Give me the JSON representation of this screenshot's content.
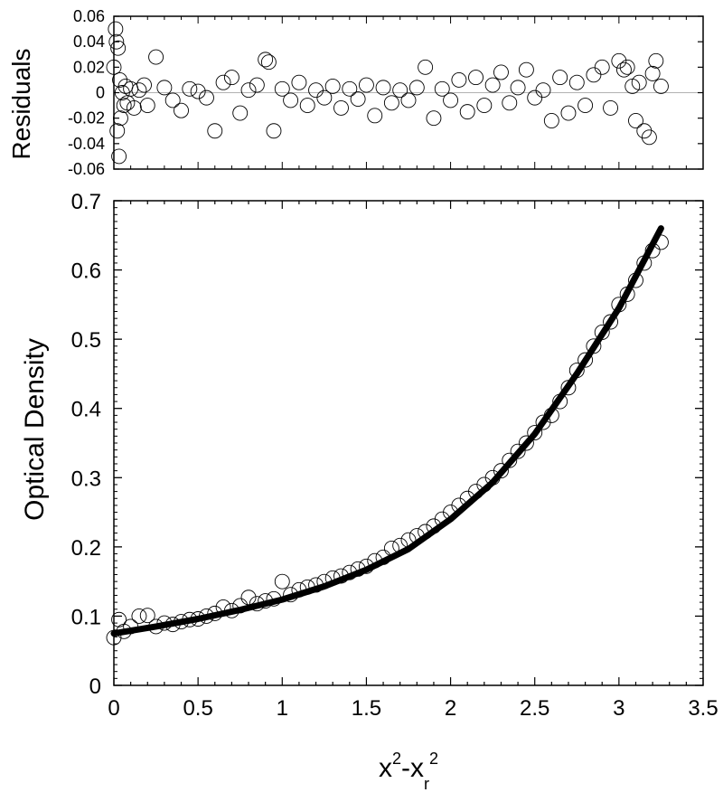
{
  "chart_data": [
    {
      "id": "residuals",
      "type": "scatter",
      "xlim": [
        0,
        3.5
      ],
      "ylim": [
        -0.06,
        0.06
      ],
      "ylabel": "Residuals",
      "yticks": [
        "0.06",
        "0.04",
        "0.02",
        "0",
        "-0.02",
        "-0.04",
        "-0.06"
      ],
      "ytick_values": [
        0.06,
        0.04,
        0.02,
        0,
        -0.02,
        -0.04,
        -0.06
      ],
      "zero_line": true,
      "grid": false,
      "series": [
        {
          "marker": "open-circle",
          "x": [
            0.0,
            0.01,
            0.015,
            0.02,
            0.025,
            0.03,
            0.035,
            0.04,
            0.05,
            0.06,
            0.07,
            0.08,
            0.1,
            0.12,
            0.15,
            0.18,
            0.2,
            0.25,
            0.3,
            0.35,
            0.4,
            0.45,
            0.5,
            0.55,
            0.6,
            0.65,
            0.7,
            0.75,
            0.8,
            0.85,
            0.9,
            0.92,
            0.95,
            1.0,
            1.05,
            1.1,
            1.15,
            1.2,
            1.25,
            1.3,
            1.35,
            1.4,
            1.45,
            1.5,
            1.55,
            1.6,
            1.65,
            1.7,
            1.75,
            1.8,
            1.85,
            1.9,
            1.95,
            2.0,
            2.05,
            2.1,
            2.15,
            2.2,
            2.25,
            2.3,
            2.35,
            2.4,
            2.45,
            2.5,
            2.55,
            2.6,
            2.65,
            2.7,
            2.75,
            2.8,
            2.85,
            2.9,
            2.95,
            3.0,
            3.03,
            3.05,
            3.08,
            3.1,
            3.12,
            3.15,
            3.18,
            3.2,
            3.22,
            3.25
          ],
          "y": [
            0.02,
            0.05,
            0.04,
            -0.03,
            0.035,
            -0.05,
            0.01,
            -0.02,
            0.0,
            -0.01,
            0.005,
            -0.008,
            0.003,
            -0.012,
            0.002,
            0.006,
            -0.01,
            0.028,
            0.004,
            -0.006,
            -0.014,
            0.003,
            0.001,
            -0.004,
            -0.03,
            0.008,
            0.012,
            -0.016,
            0.002,
            0.006,
            0.026,
            0.024,
            -0.03,
            0.003,
            -0.006,
            0.008,
            -0.01,
            0.002,
            -0.004,
            0.005,
            -0.012,
            0.003,
            -0.005,
            0.006,
            -0.018,
            0.004,
            -0.008,
            0.002,
            -0.006,
            0.004,
            0.02,
            -0.02,
            0.003,
            -0.006,
            0.01,
            -0.015,
            0.012,
            -0.01,
            0.006,
            0.016,
            -0.008,
            0.004,
            0.018,
            -0.004,
            0.002,
            -0.022,
            0.012,
            -0.016,
            0.008,
            -0.01,
            0.014,
            0.02,
            -0.012,
            0.025,
            0.018,
            0.02,
            0.005,
            -0.022,
            0.008,
            -0.03,
            -0.035,
            0.015,
            0.025,
            0.005
          ]
        }
      ]
    },
    {
      "id": "optical-density",
      "type": "scatter",
      "xlim": [
        0,
        3.5
      ],
      "ylim": [
        0,
        0.7
      ],
      "xlabel": "x²-xᵣ²",
      "xlabel_base1": "x",
      "xlabel_sup1": "2",
      "xlabel_mid": "-x",
      "xlabel_sub": "r",
      "xlabel_sup2": "2",
      "ylabel": "Optical Density",
      "xticks": [
        "0",
        "0.5",
        "1",
        "1.5",
        "2",
        "2.5",
        "3",
        "3.5"
      ],
      "xtick_values": [
        0,
        0.5,
        1,
        1.5,
        2,
        2.5,
        3,
        3.5
      ],
      "yticks": [
        "0",
        "0.1",
        "0.2",
        "0.3",
        "0.4",
        "0.5",
        "0.6",
        "0.7"
      ],
      "ytick_values": [
        0,
        0.1,
        0.2,
        0.3,
        0.4,
        0.5,
        0.6,
        0.7
      ],
      "grid": false,
      "series": [
        {
          "marker": "open-circle",
          "x": [
            0.0,
            0.03,
            0.06,
            0.1,
            0.15,
            0.2,
            0.25,
            0.3,
            0.35,
            0.4,
            0.45,
            0.5,
            0.55,
            0.6,
            0.65,
            0.7,
            0.75,
            0.8,
            0.85,
            0.9,
            0.95,
            1.0,
            1.05,
            1.1,
            1.15,
            1.2,
            1.25,
            1.3,
            1.35,
            1.4,
            1.45,
            1.5,
            1.55,
            1.6,
            1.65,
            1.7,
            1.75,
            1.8,
            1.85,
            1.9,
            1.95,
            2.0,
            2.05,
            2.1,
            2.15,
            2.2,
            2.25,
            2.3,
            2.35,
            2.4,
            2.45,
            2.5,
            2.55,
            2.6,
            2.65,
            2.7,
            2.75,
            2.8,
            2.85,
            2.9,
            2.95,
            3.0,
            3.05,
            3.1,
            3.15,
            3.2,
            3.25
          ],
          "y": [
            0.069,
            0.095,
            0.078,
            0.085,
            0.1,
            0.101,
            0.085,
            0.09,
            0.088,
            0.092,
            0.095,
            0.096,
            0.1,
            0.104,
            0.113,
            0.108,
            0.115,
            0.127,
            0.118,
            0.122,
            0.125,
            0.15,
            0.131,
            0.138,
            0.142,
            0.145,
            0.15,
            0.155,
            0.158,
            0.163,
            0.168,
            0.172,
            0.18,
            0.185,
            0.198,
            0.202,
            0.21,
            0.216,
            0.222,
            0.23,
            0.24,
            0.25,
            0.26,
            0.27,
            0.28,
            0.29,
            0.3,
            0.31,
            0.325,
            0.338,
            0.35,
            0.365,
            0.38,
            0.39,
            0.41,
            0.43,
            0.455,
            0.47,
            0.49,
            0.51,
            0.525,
            0.55,
            0.565,
            0.585,
            0.61,
            0.628,
            0.64
          ]
        },
        {
          "marker": "line",
          "x": [
            0.0,
            0.25,
            0.5,
            0.75,
            1.0,
            1.25,
            1.5,
            1.75,
            2.0,
            2.25,
            2.5,
            2.75,
            3.0,
            3.25
          ],
          "y": [
            0.075,
            0.085,
            0.096,
            0.109,
            0.124,
            0.143,
            0.167,
            0.197,
            0.24,
            0.293,
            0.363,
            0.45,
            0.545,
            0.66
          ]
        }
      ]
    }
  ]
}
